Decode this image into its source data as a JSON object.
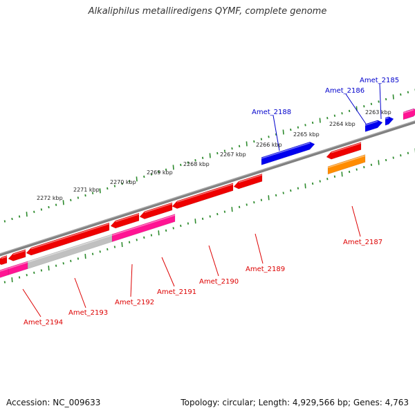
{
  "title": "Alkaliphilus metalliredigens QYMF, complete genome",
  "footer": {
    "accession": "Accession: NC_009633",
    "summary": "Topology: circular; Length: 4,929,566 bp; Genes: 4,763"
  },
  "colors": {
    "backbone": "#808080",
    "ticks": "#2e8b2e",
    "forward_gene": "#0000ee",
    "forward_label": "#0000cc",
    "reverse_gene": "#ee0000",
    "reverse_label": "#dd0000",
    "pink_gene": "#ff1493",
    "grey_gene": "#c0c0c0",
    "orange_gene": "#ff8c00"
  },
  "kbp_labels": [
    "2263 kbp",
    "2264 kbp",
    "2265 kbp",
    "2266 kbp",
    "2267 kbp",
    "2268 kbp",
    "2269 kbp",
    "2270 kbp",
    "2271 kbp",
    "2272 kbp"
  ],
  "gene_labels": {
    "forward": [
      "Amet_2185",
      "Amet_2186",
      "Amet_2188"
    ],
    "reverse": [
      "Amet_2187",
      "Amet_2189",
      "Amet_2190",
      "Amet_2191",
      "Amet_2192",
      "Amet_2193",
      "Amet_2194"
    ]
  }
}
